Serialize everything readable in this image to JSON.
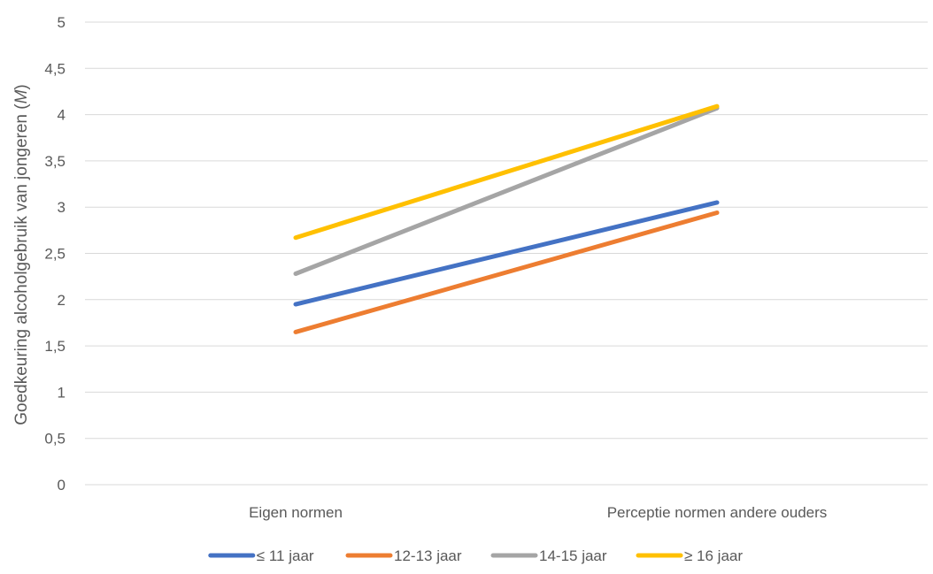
{
  "chart_data": {
    "type": "line",
    "title": "",
    "xlabel": "",
    "ylabel": "Goedkeuring alcoholgebruik van jongeren (M)",
    "ylabel_main": "Goedkeuring alcoholgebruik van jongeren (",
    "ylabel_italic": "M",
    "ylabel_close": ")",
    "categories": [
      "Eigen normen",
      "Perceptie normen andere ouders"
    ],
    "ylim": [
      0,
      5
    ],
    "yticks": [
      0,
      0.5,
      1,
      1.5,
      2,
      2.5,
      3,
      3.5,
      4,
      4.5,
      5
    ],
    "ytick_labels": [
      "0",
      "0,5",
      "1",
      "1,5",
      "2",
      "2,5",
      "3",
      "3,5",
      "4",
      "4,5",
      "5"
    ],
    "grid": true,
    "legend_position": "bottom",
    "series": [
      {
        "name": "≤ 11 jaar",
        "color": "#4472c4",
        "values": [
          1.95,
          3.05
        ]
      },
      {
        "name": "12-13 jaar",
        "color": "#ed7d31",
        "values": [
          1.65,
          2.94
        ]
      },
      {
        "name": "14-15 jaar",
        "color": "#a5a5a5",
        "values": [
          2.28,
          4.07
        ]
      },
      {
        "name": "≥ 16 jaar",
        "color": "#ffc000",
        "values": [
          2.67,
          4.09
        ]
      }
    ]
  }
}
